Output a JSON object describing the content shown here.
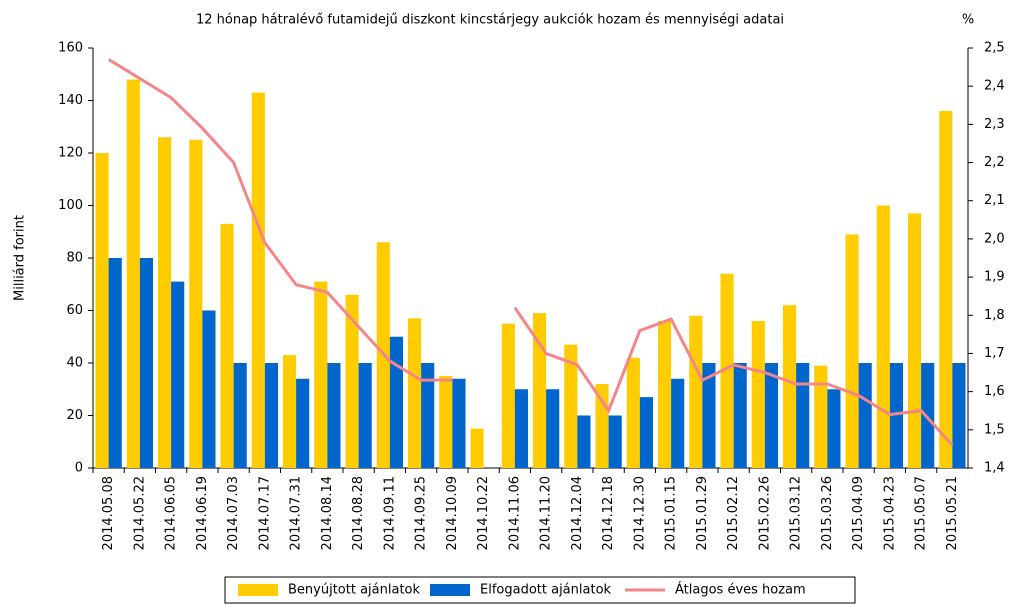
{
  "chart_data": {
    "type": "bar_line",
    "title": "12 hónap hátralévő futamidejű diszkont kincstárjegy aukciók hozam és mennyiségi adatai",
    "ylabel": "Milliárd forint",
    "y2label": "%",
    "categories": [
      "2014.05.08",
      "2014.05.22",
      "2014.06.05",
      "2014.06.19",
      "2014.07.03",
      "2014.07.17",
      "2014.07.31",
      "2014.08.14",
      "2014.08.28",
      "2014.09.11",
      "2014.09.25",
      "2014.10.09",
      "2014.10.22",
      "2014.11.06",
      "2014.11.20",
      "2014.12.04",
      "2014.12.18",
      "2014.12.30",
      "2015.01.15",
      "2015.01.29",
      "2015.02.12",
      "2015.02.26",
      "2015.03.12",
      "2015.03.26",
      "2015.04.09",
      "2015.04.23",
      "2015.05.07",
      "2015.05.21"
    ],
    "series": [
      {
        "name": "Benyújtott ajánlatok",
        "color": "#ffcc00",
        "values": [
          120,
          148,
          126,
          125,
          93,
          143,
          43,
          71,
          66,
          86,
          57,
          35,
          15,
          55,
          59,
          47,
          32,
          42,
          56,
          58,
          74,
          56,
          62,
          39,
          89,
          100,
          97,
          136
        ]
      },
      {
        "name": "Elfogadott ajánlatok",
        "color": "#0066cc",
        "values": [
          80,
          80,
          71,
          60,
          40,
          40,
          34,
          40,
          40,
          50,
          40,
          34,
          null,
          30,
          30,
          20,
          20,
          27,
          34,
          40,
          40,
          40,
          40,
          30,
          40,
          40,
          40,
          40
        ]
      },
      {
        "name": "Átlagos éves hozam",
        "color": "#f4868a",
        "axis": "y2",
        "values": [
          2.47,
          2.42,
          2.37,
          2.29,
          2.2,
          1.99,
          1.88,
          1.86,
          1.77,
          1.68,
          1.63,
          1.63,
          null,
          1.82,
          1.7,
          1.67,
          1.55,
          1.76,
          1.79,
          1.63,
          1.67,
          1.65,
          1.62,
          1.62,
          1.59,
          1.54,
          1.55,
          1.46
        ]
      }
    ],
    "ylim": [
      0,
      160
    ],
    "yticks": [
      0,
      20,
      40,
      60,
      80,
      100,
      120,
      140,
      160
    ],
    "y2lim": [
      1.4,
      2.5
    ],
    "y2ticks": [
      {
        "value": 1.4,
        "label": "1,4"
      },
      {
        "value": 1.5,
        "label": "1,5"
      },
      {
        "value": 1.6,
        "label": "1,6"
      },
      {
        "value": 1.7,
        "label": "1,7"
      },
      {
        "value": 1.8,
        "label": "1,8"
      },
      {
        "value": 1.9,
        "label": "1,9"
      },
      {
        "value": 2.0,
        "label": "2,0"
      },
      {
        "value": 2.1,
        "label": "2,1"
      },
      {
        "value": 2.2,
        "label": "2,2"
      },
      {
        "value": 2.3,
        "label": "2,3"
      },
      {
        "value": 2.4,
        "label": "2,4"
      },
      {
        "value": 2.5,
        "label": "2,5"
      }
    ],
    "legend": "bottom"
  }
}
